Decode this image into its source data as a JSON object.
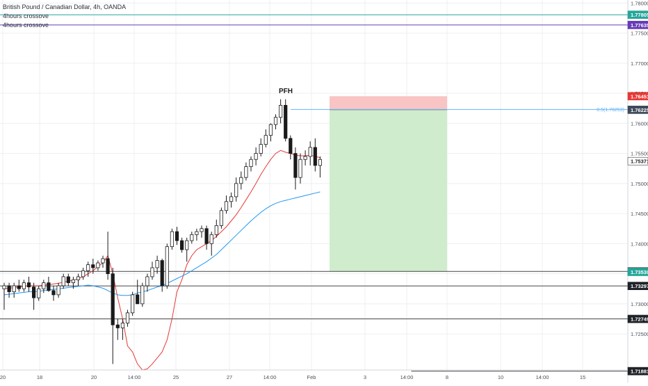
{
  "header": {
    "symbol": "British Pound / Canadian Dollar, 4h, OANDA",
    "indicator1": "4hours crossove",
    "indicator2": "4hours crossove"
  },
  "chart_data": {
    "type": "candlestick",
    "ylim": [
      1.719,
      1.7805
    ],
    "y_ticks": [
      1.725,
      1.73,
      1.735,
      1.74,
      1.745,
      1.75,
      1.755,
      1.76,
      1.765,
      1.77,
      1.775,
      1.78
    ],
    "x_ticks": [
      "20",
      "18",
      "20",
      "14:00",
      "25",
      "27",
      "14:00",
      "Feb",
      "3",
      "14:00",
      "8",
      "10",
      "14:00",
      "15"
    ],
    "annotation": "PFH",
    "fib_text": "0.5(1.76253)",
    "price_labels": [
      {
        "value": 1.77805,
        "text": "1.77805",
        "color": "#26a69a"
      },
      {
        "value": 1.77635,
        "text": "1.77635",
        "color": "#673ab7"
      },
      {
        "value": 1.76451,
        "text": "1.76451",
        "color": "#e53935"
      },
      {
        "value": 1.76225,
        "text": "1.76225",
        "color": "#3f4a5a"
      },
      {
        "value": 1.75371,
        "text": "1.75371",
        "color": "#ffffff"
      },
      {
        "value": 1.73538,
        "text": "1.73538",
        "color": "#1f2328"
      },
      {
        "value": 1.7353,
        "text": "1.73530",
        "color": "#26a69a"
      },
      {
        "value": 1.73297,
        "text": "1.73297",
        "color": "#1f2328"
      },
      {
        "value": 1.72749,
        "text": "1.72749",
        "color": "#1f2328"
      },
      {
        "value": 1.71881,
        "text": "1.71881",
        "color": "#1f2328"
      }
    ],
    "hlines": [
      {
        "value": 1.77805,
        "color": "#26a69a",
        "start": 0
      },
      {
        "value": 1.77635,
        "color": "#673ab7",
        "start": 0
      },
      {
        "value": 1.73538,
        "color": "#444444",
        "start": 0
      },
      {
        "value": 1.73297,
        "color": "#444444",
        "start": 0
      },
      {
        "value": 1.72749,
        "color": "#444444",
        "start": 0
      },
      {
        "value": 1.71881,
        "color": "#444444",
        "start": 0.655
      }
    ],
    "candles": [
      [
        1.7325,
        1.7335,
        1.729,
        1.733
      ],
      [
        1.733,
        1.7335,
        1.731,
        1.732
      ],
      [
        1.732,
        1.7335,
        1.731,
        1.733
      ],
      [
        1.733,
        1.734,
        1.732,
        1.7325
      ],
      [
        1.7325,
        1.734,
        1.732,
        1.7335
      ],
      [
        1.7335,
        1.7345,
        1.732,
        1.7328
      ],
      [
        1.7328,
        1.7335,
        1.729,
        1.731
      ],
      [
        1.731,
        1.733,
        1.7305,
        1.7325
      ],
      [
        1.7325,
        1.734,
        1.7318,
        1.7335
      ],
      [
        1.7335,
        1.7345,
        1.732,
        1.7322
      ],
      [
        1.7322,
        1.733,
        1.7305,
        1.7315
      ],
      [
        1.7315,
        1.7335,
        1.731,
        1.733
      ],
      [
        1.733,
        1.735,
        1.7325,
        1.7345
      ],
      [
        1.7345,
        1.735,
        1.733,
        1.7335
      ],
      [
        1.7335,
        1.7345,
        1.7325,
        1.734
      ],
      [
        1.734,
        1.735,
        1.733,
        1.7345
      ],
      [
        1.7345,
        1.736,
        1.734,
        1.7355
      ],
      [
        1.7355,
        1.737,
        1.7345,
        1.7365
      ],
      [
        1.7365,
        1.7375,
        1.735,
        1.736
      ],
      [
        1.736,
        1.7372,
        1.7355,
        1.7368
      ],
      [
        1.7368,
        1.738,
        1.736,
        1.7375
      ],
      [
        1.7375,
        1.742,
        1.734,
        1.735
      ],
      [
        1.735,
        1.736,
        1.72,
        1.7265
      ],
      [
        1.7265,
        1.7275,
        1.724,
        1.726
      ],
      [
        1.726,
        1.7275,
        1.724,
        1.7268
      ],
      [
        1.7268,
        1.729,
        1.7262,
        1.7285
      ],
      [
        1.7285,
        1.732,
        1.728,
        1.7315
      ],
      [
        1.7315,
        1.734,
        1.7305,
        1.73
      ],
      [
        1.73,
        1.7335,
        1.7295,
        1.733
      ],
      [
        1.733,
        1.735,
        1.732,
        1.7345
      ],
      [
        1.7345,
        1.737,
        1.734,
        1.736
      ],
      [
        1.736,
        1.738,
        1.735,
        1.7372
      ],
      [
        1.7372,
        1.7375,
        1.732,
        1.733
      ],
      [
        1.733,
        1.74,
        1.7325,
        1.7395
      ],
      [
        1.7395,
        1.7425,
        1.739,
        1.742
      ],
      [
        1.742,
        1.7428,
        1.7398,
        1.7405
      ],
      [
        1.7405,
        1.741,
        1.7385,
        1.739
      ],
      [
        1.739,
        1.741,
        1.737,
        1.7405
      ],
      [
        1.7405,
        1.742,
        1.74,
        1.7415
      ],
      [
        1.7415,
        1.7425,
        1.7405,
        1.742
      ],
      [
        1.742,
        1.743,
        1.741,
        1.7425
      ],
      [
        1.7425,
        1.743,
        1.739,
        1.74
      ],
      [
        1.74,
        1.742,
        1.738,
        1.7415
      ],
      [
        1.7415,
        1.744,
        1.741,
        1.743
      ],
      [
        1.743,
        1.746,
        1.7425,
        1.7455
      ],
      [
        1.7455,
        1.748,
        1.745,
        1.747
      ],
      [
        1.747,
        1.7485,
        1.746,
        1.7478
      ],
      [
        1.7478,
        1.751,
        1.747,
        1.75
      ],
      [
        1.75,
        1.752,
        1.749,
        1.751
      ],
      [
        1.751,
        1.7535,
        1.7505,
        1.7528
      ],
      [
        1.7528,
        1.7545,
        1.752,
        1.754
      ],
      [
        1.754,
        1.756,
        1.753,
        1.755
      ],
      [
        1.755,
        1.7575,
        1.7545,
        1.7565
      ],
      [
        1.7565,
        1.759,
        1.756,
        1.758
      ],
      [
        1.758,
        1.76,
        1.757,
        1.7598
      ],
      [
        1.7598,
        1.7615,
        1.759,
        1.761
      ],
      [
        1.761,
        1.764,
        1.76,
        1.763
      ],
      [
        1.763,
        1.764,
        1.757,
        1.7575
      ],
      [
        1.7575,
        1.758,
        1.754,
        1.755
      ],
      [
        1.755,
        1.756,
        1.749,
        1.751
      ],
      [
        1.751,
        1.755,
        1.75,
        1.754
      ],
      [
        1.754,
        1.7555,
        1.753,
        1.7545
      ],
      [
        1.7545,
        1.757,
        1.753,
        1.756
      ],
      [
        1.756,
        1.7575,
        1.752,
        1.753
      ],
      [
        1.753,
        1.7545,
        1.751,
        1.754
      ]
    ],
    "ema_fast": [
      1.7325,
      1.7326,
      1.7327,
      1.7328,
      1.7329,
      1.733,
      1.733,
      1.733,
      1.7331,
      1.7332,
      1.7333,
      1.7334,
      1.7336,
      1.7338,
      1.7339,
      1.7342,
      1.7345,
      1.735,
      1.7355,
      1.7362,
      1.7368,
      1.738,
      1.735,
      1.731,
      1.7275,
      1.723,
      1.722,
      1.72,
      1.719,
      1.7192,
      1.72,
      1.721,
      1.722,
      1.724,
      1.7275,
      1.732,
      1.734,
      1.7365,
      1.738,
      1.739,
      1.7395,
      1.74,
      1.7405,
      1.7412,
      1.742,
      1.7428,
      1.7438,
      1.7448,
      1.746,
      1.7473,
      1.7486,
      1.75,
      1.7515,
      1.7528,
      1.754,
      1.755,
      1.7555,
      1.7552,
      1.755,
      1.7547,
      1.7546,
      1.7546,
      1.7547,
      1.7545,
      1.7543
    ],
    "ema_slow": [
      1.7315,
      1.7316,
      1.7317,
      1.7318,
      1.7319,
      1.732,
      1.732,
      1.7321,
      1.7322,
      1.7323,
      1.7324,
      1.7325,
      1.7326,
      1.7327,
      1.7328,
      1.7329,
      1.733,
      1.7331,
      1.733,
      1.7328,
      1.7326,
      1.7322,
      1.7318,
      1.7315,
      1.7314,
      1.7314,
      1.7315,
      1.7318,
      1.732,
      1.7322,
      1.7325,
      1.7328,
      1.733,
      1.7334,
      1.7338,
      1.7342,
      1.7346,
      1.735,
      1.7355,
      1.736,
      1.7365,
      1.737,
      1.7376,
      1.7382,
      1.739,
      1.7398,
      1.7406,
      1.7414,
      1.7422,
      1.743,
      1.7438,
      1.7445,
      1.7452,
      1.7458,
      1.7463,
      1.7467,
      1.747,
      1.7472,
      1.7474,
      1.7476,
      1.7478,
      1.748,
      1.7482,
      1.7484,
      1.7486
    ],
    "position": {
      "entry": 1.76225,
      "stop": 1.76451,
      "target": 1.73538,
      "stop_color": "#f8c4c4",
      "target_color": "#cfeccc"
    },
    "colors": {
      "up_body": "#ffffff",
      "down_body": "#1a1a1a",
      "wick": "#1a1a1a",
      "ema_fast": "#e53935",
      "ema_slow": "#2196f3",
      "grid": "#eceff2",
      "axis_text": "#4a4f59",
      "fib": "#64b5f6"
    }
  }
}
